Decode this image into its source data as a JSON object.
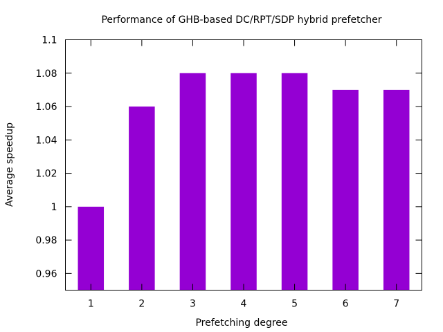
{
  "chart_data": {
    "type": "bar",
    "title": "Performance of GHB-based DC/RPT/SDP hybrid prefetcher",
    "xlabel": "Prefetching degree",
    "ylabel": "Average speedup",
    "categories": [
      "1",
      "2",
      "3",
      "4",
      "5",
      "6",
      "7"
    ],
    "values": [
      1.0,
      1.06,
      1.08,
      1.08,
      1.08,
      1.07,
      1.07
    ],
    "ylim": [
      0.95,
      1.1
    ],
    "yticks": [
      0.96,
      0.98,
      1.0,
      1.02,
      1.04,
      1.06,
      1.08,
      1.1
    ],
    "ytick_labels": [
      "0.96",
      "0.98",
      "1",
      "1.02",
      "1.04",
      "1.06",
      "1.08",
      "1.1"
    ],
    "bar_color": "#9400d3",
    "grid": false,
    "legend": "none"
  }
}
